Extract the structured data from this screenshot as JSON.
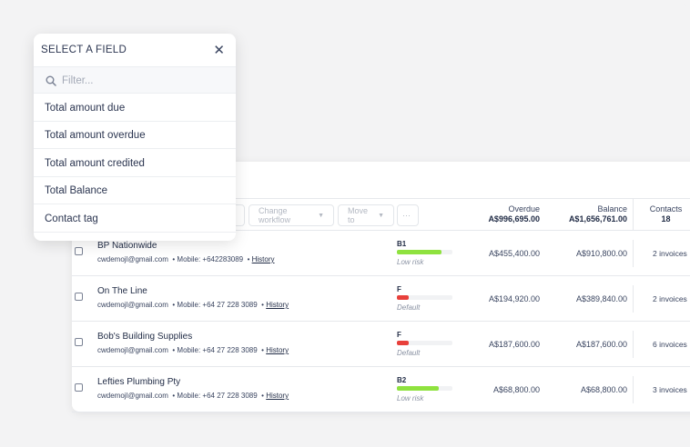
{
  "popover": {
    "title": "SELECT A FIELD",
    "close_icon": "close-icon",
    "filter_placeholder": "Filter...",
    "options": [
      "Total amount due",
      "Total amount overdue",
      "Total amount credited",
      "Total Balance",
      "Contact tag"
    ]
  },
  "toolbar": {
    "change_workflow": "Change workflow",
    "move_to": "Move to",
    "more": "···"
  },
  "columns": {
    "overdue": {
      "label": "Overdue",
      "total": "A$996,695.00"
    },
    "balance": {
      "label": "Balance",
      "total": "A$1,656,761.00"
    },
    "contacts": {
      "label": "Contacts",
      "total": "18"
    }
  },
  "rows": [
    {
      "name": "BP Nationwide",
      "email": "cwdemojl@gmail.com",
      "mobile": "• Mobile: +642283089",
      "history": "History",
      "grade": "B1",
      "score": 0.8,
      "bar_color": "#8fe23f",
      "risk": "Low risk",
      "overdue": "A$455,400.00",
      "balance": "A$910,800.00",
      "invoices": "2 invoices"
    },
    {
      "name": "On The Line",
      "email": "cwdemojl@gmail.com",
      "mobile": "• Mobile: +64 27 228 3089",
      "history": "History",
      "grade": "F",
      "score": 0.22,
      "bar_color": "#e8403b",
      "risk": "Default",
      "overdue": "A$194,920.00",
      "balance": "A$389,840.00",
      "invoices": "2 invoices"
    },
    {
      "name": "Bob's Building Supplies",
      "email": "cwdemojl@gmail.com",
      "mobile": "• Mobile: +64 27 228 3089",
      "history": "History",
      "grade": "F",
      "score": 0.22,
      "bar_color": "#e8403b",
      "risk": "Default",
      "overdue": "A$187,600.00",
      "balance": "A$187,600.00",
      "invoices": "6 invoices"
    },
    {
      "name": "Lefties Plumbing Pty",
      "email": "cwdemojl@gmail.com",
      "mobile": "• Mobile: +64 27 228 3089",
      "history": "History",
      "grade": "B2",
      "score": 0.75,
      "bar_color": "#8fe23f",
      "risk": "Low risk",
      "overdue": "A$68,800.00",
      "balance": "A$68,800.00",
      "invoices": "3 invoices"
    }
  ]
}
